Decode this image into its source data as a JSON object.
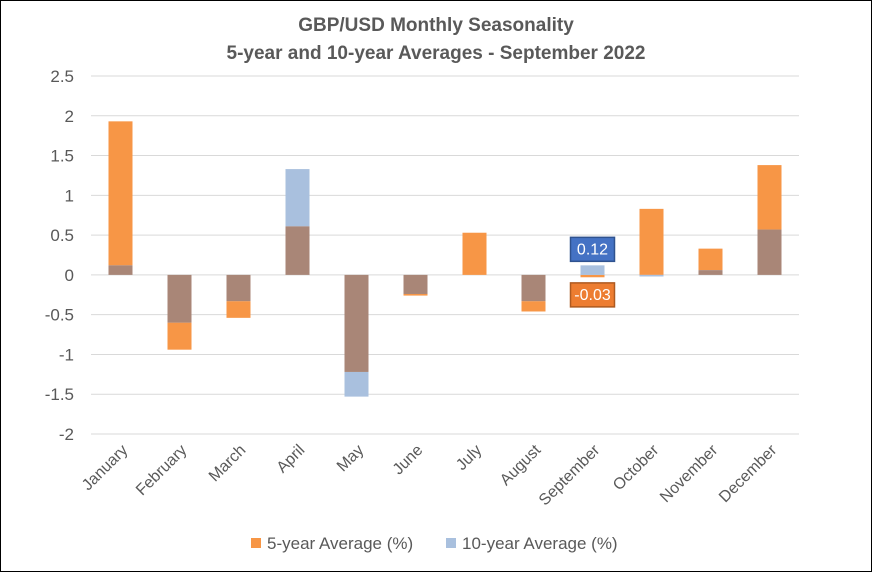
{
  "chart_data": {
    "type": "bar",
    "title": [
      "GBP/USD Monthly Seasonality",
      "5-year and 10-year Averages - September 2022"
    ],
    "xlabel": "",
    "ylabel": "",
    "categories": [
      "January",
      "February",
      "March",
      "April",
      "May",
      "June",
      "July",
      "August",
      "September",
      "October",
      "November",
      "December"
    ],
    "series": [
      {
        "name": "5-year Average (%)",
        "color": "#F79646",
        "values": [
          1.93,
          -0.94,
          -0.54,
          0.61,
          -1.22,
          -0.26,
          0.53,
          -0.46,
          -0.03,
          0.83,
          0.33,
          1.38
        ]
      },
      {
        "name": "10-year Average (%)",
        "color": "#A9C0DE",
        "values": [
          0.12,
          -0.6,
          -0.33,
          1.33,
          -1.53,
          -0.24,
          0.0,
          -0.33,
          0.12,
          -0.02,
          0.06,
          0.57
        ]
      }
    ],
    "overlap_color": "#A98677",
    "ylim": [
      -2,
      2.5
    ],
    "yticks": [
      "2.5",
      "2",
      "1.5",
      "1",
      "0.5",
      "0",
      "-0.5",
      "-1",
      "-1.5",
      "-2"
    ],
    "ytick_values": [
      2.5,
      2,
      1.5,
      1,
      0.5,
      0,
      -0.5,
      -1,
      -1.5,
      -2
    ],
    "grid": true,
    "legend_position": "bottom",
    "annotations": [
      {
        "category": "September",
        "series": "10-year Average (%)",
        "text": "0.12",
        "fill": "#4472C4",
        "border": "#2F528F"
      },
      {
        "category": "September",
        "series": "5-year Average (%)",
        "text": "-0.03",
        "fill": "#ED7D31",
        "border": "#AE5A21"
      }
    ]
  }
}
